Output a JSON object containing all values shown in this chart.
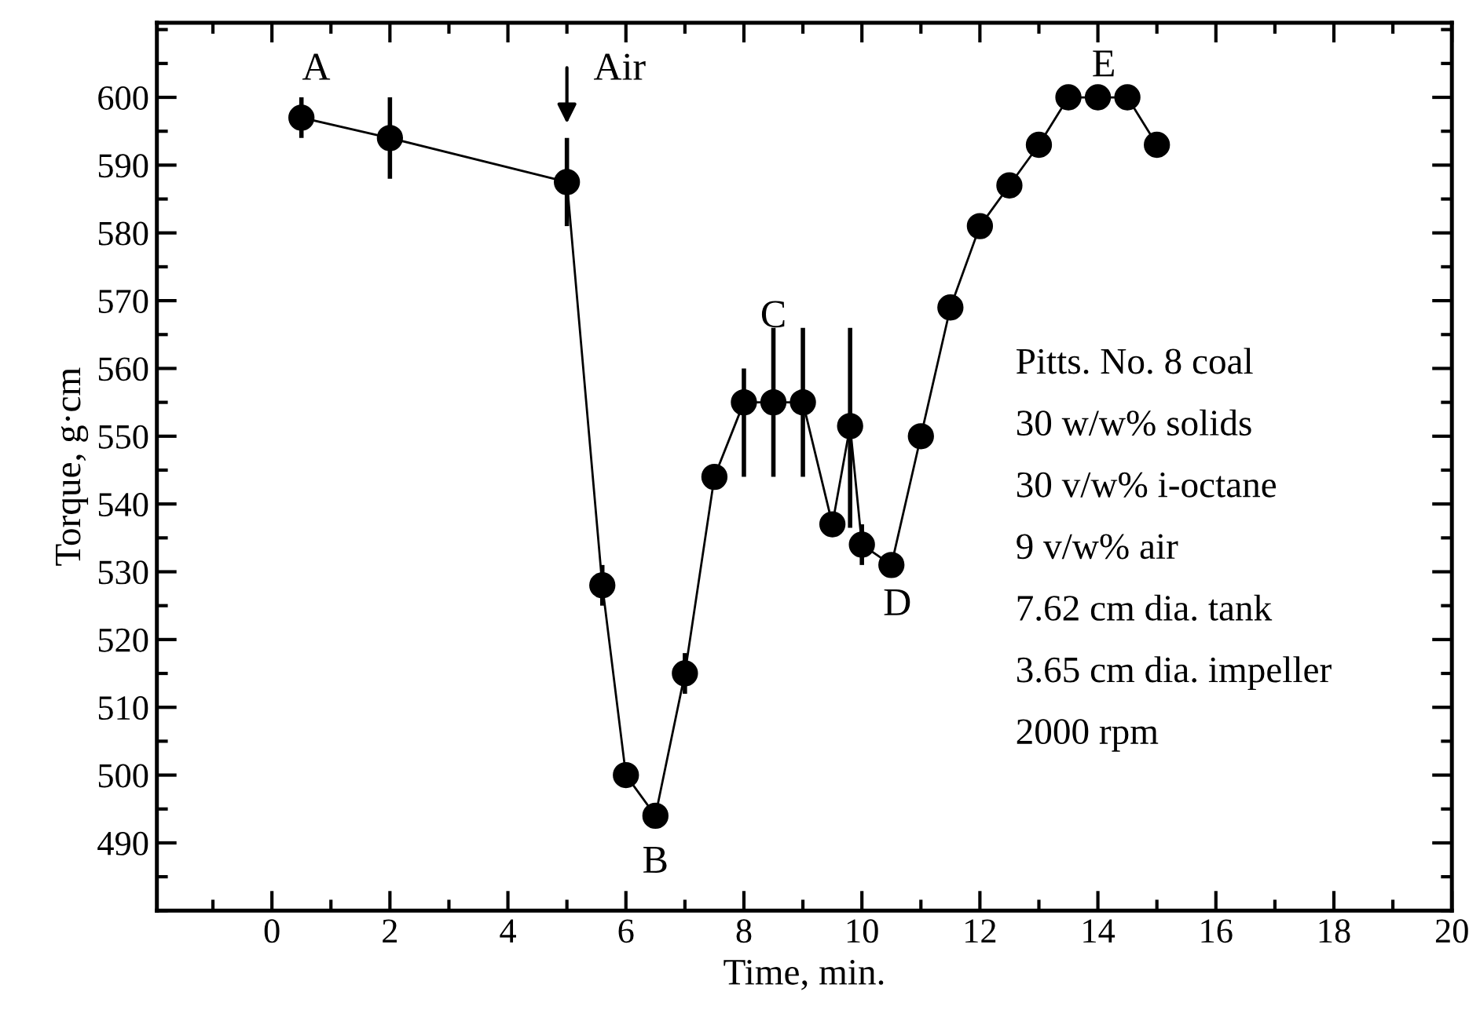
{
  "chart_data": {
    "type": "line",
    "xlabel": "Time, min.",
    "ylabel": "Torque, g·cm",
    "x": [
      0.5,
      2,
      5,
      5.6,
      6,
      6.5,
      7,
      7.5,
      8,
      8.5,
      9,
      9.5,
      9.8,
      10,
      10.5,
      11,
      11.5,
      12,
      12.5,
      13,
      13.5,
      14,
      14.5,
      15
    ],
    "values": [
      597,
      594,
      587.5,
      528,
      500,
      494,
      515,
      544,
      555,
      555,
      555,
      537,
      551.5,
      534,
      531,
      550,
      569,
      581,
      587,
      593,
      600,
      600,
      600,
      593
    ],
    "errors": [
      3,
      6,
      6.5,
      3,
      null,
      null,
      3,
      null,
      [
        544,
        560
      ],
      [
        544,
        566
      ],
      [
        544,
        566
      ],
      null,
      [
        536.5,
        566
      ],
      3,
      null,
      null,
      null,
      null,
      null,
      null,
      null,
      null,
      null,
      null
    ],
    "color": "#000000",
    "marker": "circle",
    "line_style": "solid",
    "grid": false,
    "legend": false,
    "xlim": [
      -1.95,
      20
    ],
    "xticks": [
      0,
      2,
      4,
      6,
      8,
      10,
      12,
      14,
      16,
      18,
      20
    ],
    "ylim": [
      480,
      611
    ],
    "yticks": [
      490,
      500,
      510,
      520,
      530,
      540,
      550,
      560,
      570,
      580,
      590,
      600
    ],
    "annotations": [
      "A",
      "Air",
      "B",
      "C",
      "D",
      "E",
      "Pitts. No. 8 coal",
      "30 w/w% solids",
      "30 v/w% i-octane",
      "9 v/w% air",
      "7.62 cm dia. tank",
      "3.65 cm dia. impeller",
      "2000 rpm"
    ]
  }
}
